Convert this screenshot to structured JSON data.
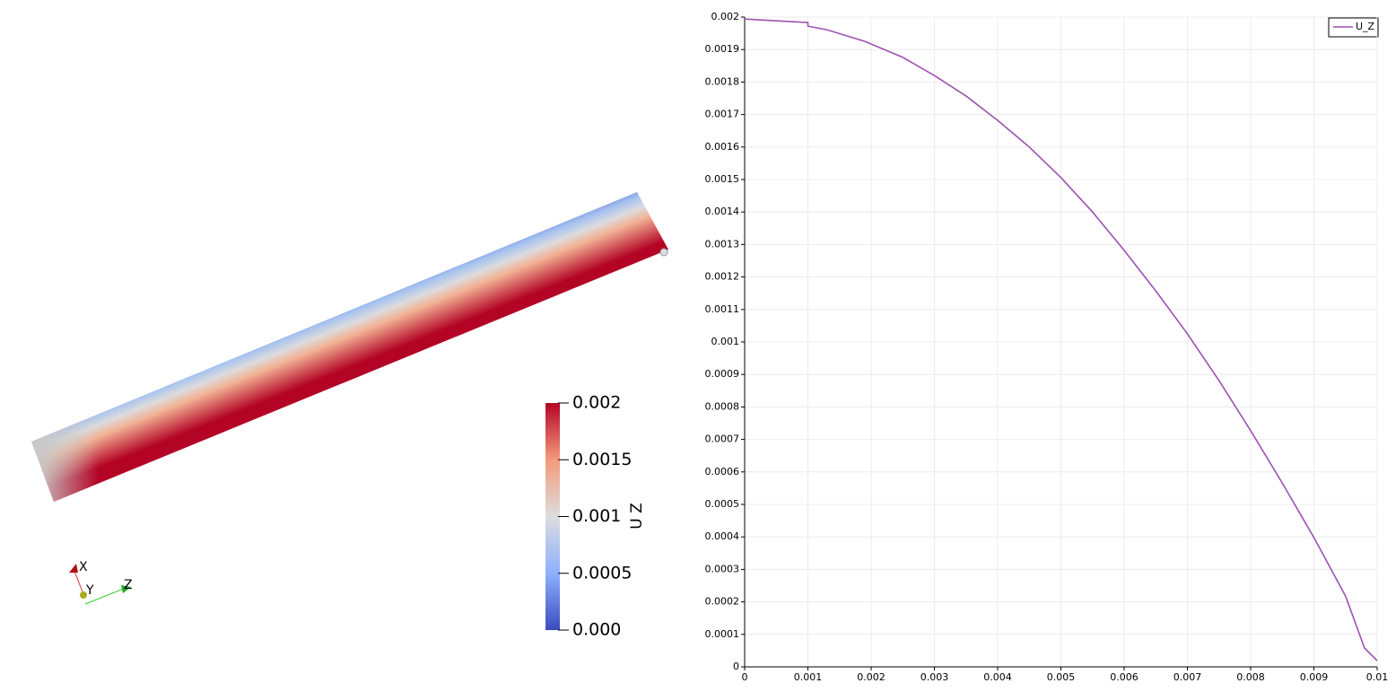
{
  "chart_data": {
    "type": "line",
    "x": [
      0,
      0.001,
      0.001,
      0.0013,
      0.0019,
      0.0025,
      0.003,
      0.0035,
      0.004,
      0.0045,
      0.005,
      0.0055,
      0.006,
      0.0065,
      0.007,
      0.0075,
      0.008,
      0.0085,
      0.009,
      0.0095,
      0.0098,
      0.01
    ],
    "series": [
      {
        "name": "U_Z",
        "color": "#9c52b0",
        "values": [
          0.001994,
          0.001983,
          0.001972,
          0.001961,
          0.001925,
          0.001876,
          0.00182,
          0.001757,
          0.001682,
          0.0016,
          0.001506,
          0.0014,
          0.001282,
          0.001157,
          0.001025,
          0.000881,
          0.000727,
          0.000566,
          0.000398,
          0.000218,
          5.8e-05,
          1.9e-05
        ]
      }
    ],
    "xlim": [
      0,
      0.01
    ],
    "ylim": [
      0,
      0.002
    ],
    "xticks": [
      0,
      0.001,
      0.002,
      0.003,
      0.004,
      0.005,
      0.006,
      0.007,
      0.008,
      0.009,
      0.01
    ],
    "yticks": [
      0,
      0.0001,
      0.0002,
      0.0003,
      0.0004,
      0.0005,
      0.0006,
      0.0007,
      0.0008,
      0.0009,
      0.001,
      0.0011,
      0.0012,
      0.0013,
      0.0014,
      0.0015,
      0.0016,
      0.0017,
      0.0018,
      0.0019,
      0.002
    ],
    "grid": true,
    "legend": "top-right"
  },
  "colorbar": {
    "title": "U Z",
    "range": [
      0,
      0.002
    ],
    "ticks": [
      {
        "value": 0,
        "label": "0.000"
      },
      0.0005,
      0.001,
      0.0015,
      0.002
    ]
  },
  "orientation_axes": [
    "X",
    "Y",
    "Z"
  ]
}
